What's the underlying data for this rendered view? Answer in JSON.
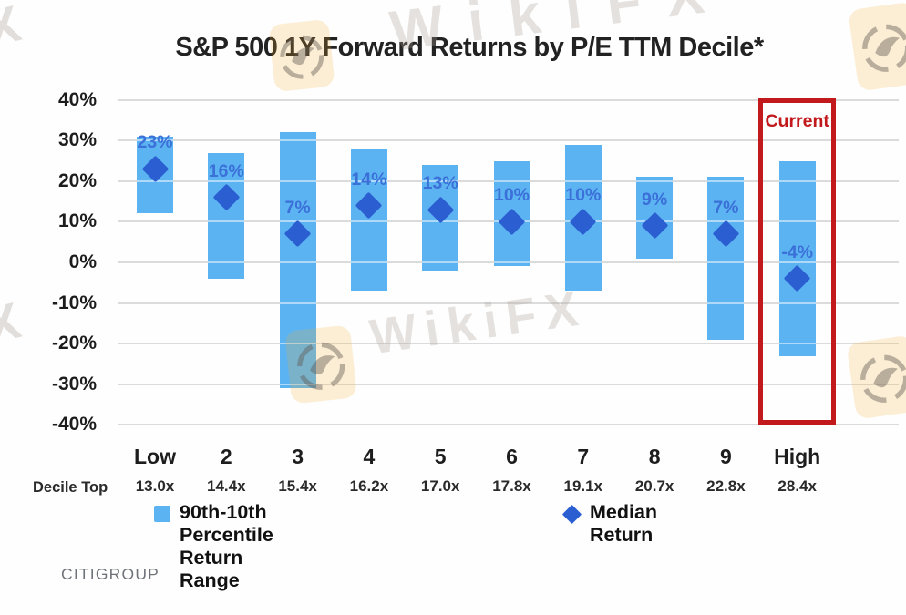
{
  "title": "S&P 500 1Y Forward Returns by P/E TTM Decile*",
  "source": "CITIGROUP",
  "watermark": {
    "brand": "WikiFX",
    "fragment": "X",
    "logo_icon": "wikifx-eagle-icon"
  },
  "legend": {
    "range_label": "90th-10th Percentile Return Range",
    "median_label": "Median Return"
  },
  "axis": {
    "decile_top_label": "Decile Top"
  },
  "colors": {
    "bar": "#5cb3f2",
    "median": "#2a5ed1",
    "value_label": "#3a70d8",
    "highlight_red": "#c2191d",
    "grid": "#dbdbdb",
    "axis_text": "#1c1c1c",
    "source_text": "#70747a",
    "watermark_orange": "#f6ad2d"
  },
  "chart_data": {
    "type": "bar",
    "subtype": "floating-range-bar-with-median-points",
    "categories": [
      "Low",
      "2",
      "3",
      "4",
      "5",
      "6",
      "7",
      "8",
      "9",
      "High"
    ],
    "decile_top": [
      "13.0x",
      "14.4x",
      "15.4x",
      "16.2x",
      "17.0x",
      "17.8x",
      "19.1x",
      "20.7x",
      "22.8x",
      "28.4x"
    ],
    "series": [
      {
        "name": "90th-10th Percentile Return Range",
        "type": "range",
        "high": [
          31,
          27,
          32,
          28,
          24,
          25,
          29,
          21,
          21,
          25
        ],
        "low": [
          12,
          -4,
          -31,
          -7,
          -2,
          -1,
          -7,
          1,
          -19,
          -23
        ]
      },
      {
        "name": "Median Return",
        "type": "point",
        "values": [
          23,
          16,
          7,
          14,
          13,
          10,
          10,
          9,
          7,
          -4
        ]
      }
    ],
    "labels": [
      "23%",
      "16%",
      "7%",
      "14%",
      "13%",
      "10%",
      "10%",
      "9%",
      "7%",
      "-4%"
    ],
    "yticks": [
      {
        "value": 40,
        "label": "40%"
      },
      {
        "value": 30,
        "label": "30%"
      },
      {
        "value": 20,
        "label": "20%"
      },
      {
        "value": 10,
        "label": "10%"
      },
      {
        "value": 0,
        "label": "0%"
      },
      {
        "value": -10,
        "label": "-10%"
      },
      {
        "value": -20,
        "label": "-20%"
      },
      {
        "value": -30,
        "label": "-30%"
      },
      {
        "value": -40,
        "label": "-40%"
      }
    ],
    "ylim": [
      -40,
      40
    ],
    "unit": "%",
    "grid": true,
    "legend_position": "bottom",
    "highlight": {
      "index": 9,
      "label": "Current"
    }
  }
}
